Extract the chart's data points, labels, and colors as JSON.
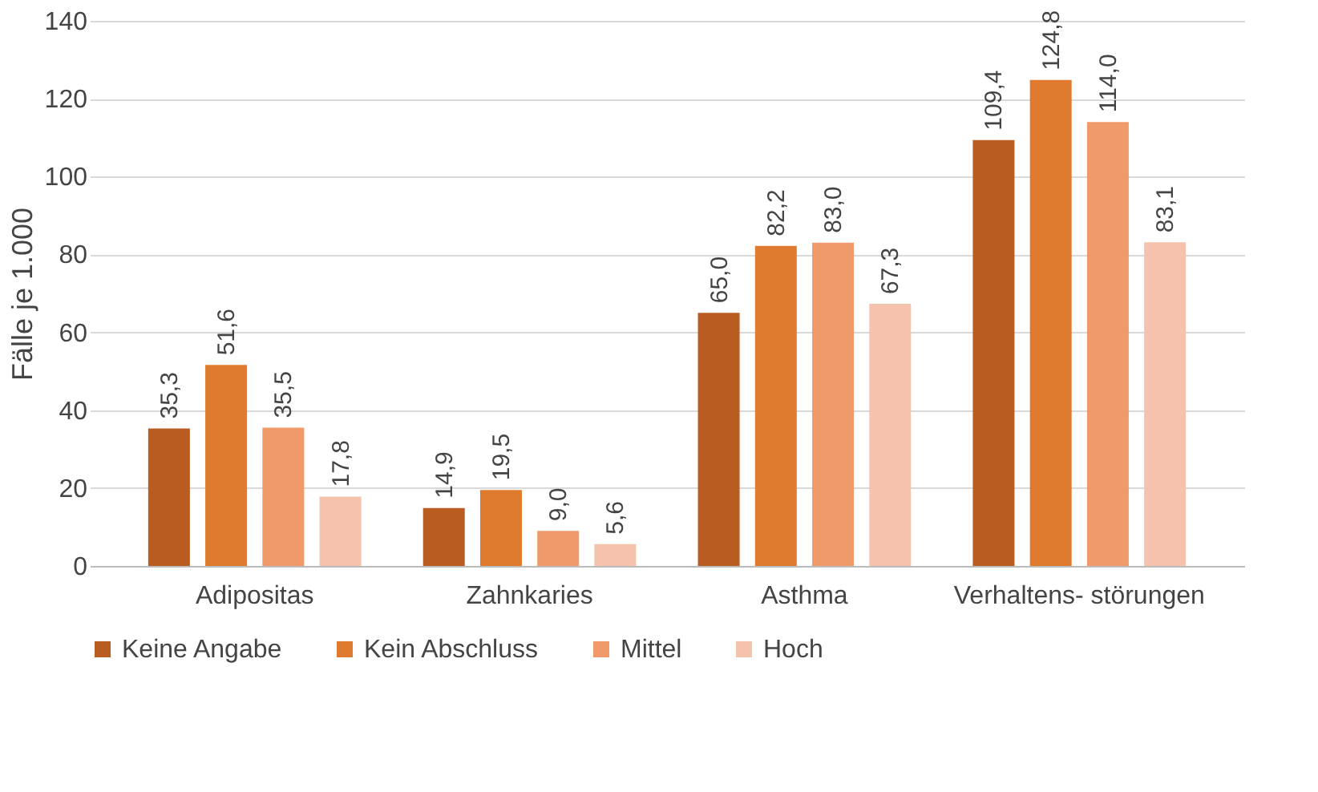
{
  "chart_data": {
    "type": "bar",
    "ylabel": "Fälle je 1.000",
    "categories": [
      "Adipositas",
      "Zahnkaries",
      "Asthma",
      "Verhaltens-\nstörungen"
    ],
    "series": [
      {
        "name": "Keine Angabe",
        "color": "#b85c22",
        "values": [
          35.3,
          14.9,
          65.0,
          109.4
        ],
        "value_labels": [
          "35,3",
          "14,9",
          "65,0",
          "109,4"
        ]
      },
      {
        "name": "Kein Abschluss",
        "color": "#e07a2e",
        "values": [
          51.6,
          19.5,
          82.2,
          124.8
        ],
        "value_labels": [
          "51,6",
          "19,5",
          "82,2",
          "124,8"
        ]
      },
      {
        "name": "Mittel",
        "color": "#f09a6a",
        "values": [
          35.5,
          9.0,
          83.0,
          114.0
        ],
        "value_labels": [
          "35,5",
          "9,0",
          "83,0",
          "114,0"
        ]
      },
      {
        "name": "Hoch",
        "color": "#f5c2ae",
        "values": [
          17.8,
          5.6,
          67.3,
          83.1
        ],
        "value_labels": [
          "17,8",
          "5,6",
          "67,3",
          "83,1"
        ]
      }
    ],
    "ylim": [
      0,
      140
    ],
    "yticks": [
      0,
      20,
      40,
      60,
      80,
      100,
      120,
      140
    ],
    "grid": "y",
    "legend": "bottom"
  }
}
